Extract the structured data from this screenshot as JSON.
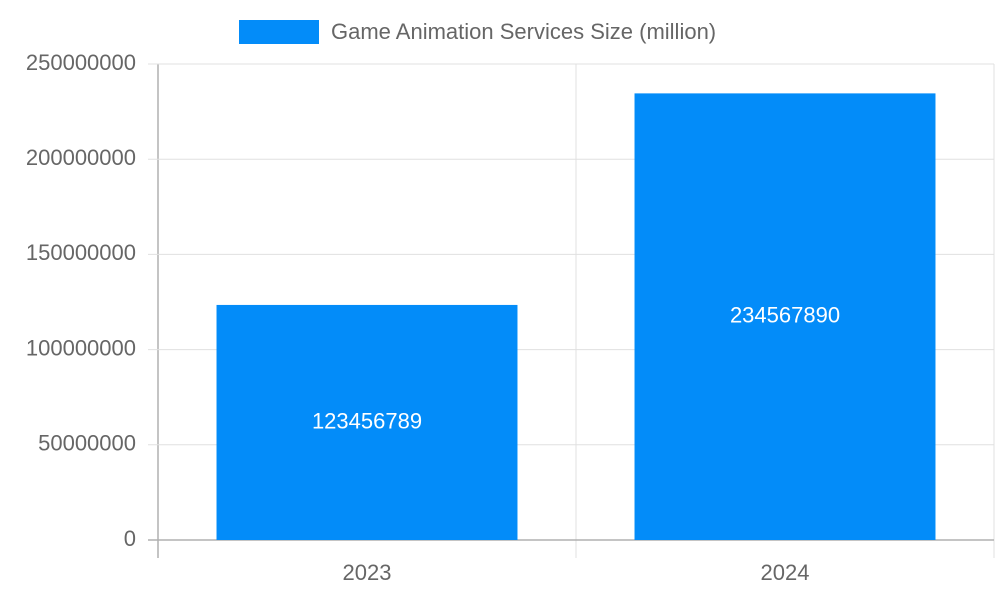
{
  "chart_data": {
    "type": "bar",
    "categories": [
      "2023",
      "2024"
    ],
    "series": [
      {
        "name": "Game Animation Services Size (million)",
        "color": "#038cf9",
        "values": [
          123456789,
          234567890
        ]
      }
    ],
    "ylim": [
      0,
      250000000
    ],
    "yticks": [
      0,
      50000000,
      100000000,
      150000000,
      200000000,
      250000000
    ],
    "grid": true
  }
}
